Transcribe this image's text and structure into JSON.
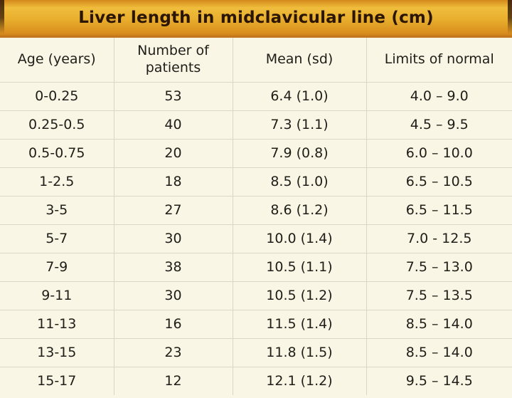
{
  "header": {
    "title": "Liver length in midclavicular line (cm)"
  },
  "chart_data": {
    "type": "table",
    "title": "Liver length in midclavicular line (cm)",
    "columns": [
      "Age (years)",
      "Number of\npatients",
      "Mean (sd)",
      "Limits of normal"
    ],
    "rows": [
      [
        "0-0.25",
        "53",
        "6.4 (1.0)",
        "4.0 – 9.0"
      ],
      [
        "0.25-0.5",
        "40",
        "7.3 (1.1)",
        "4.5 – 9.5"
      ],
      [
        "0.5-0.75",
        "20",
        "7.9 (0.8)",
        "6.0 – 10.0"
      ],
      [
        "1-2.5",
        "18",
        "8.5 (1.0)",
        "6.5 – 10.5"
      ],
      [
        "3-5",
        "27",
        "8.6 (1.2)",
        "6.5 – 11.5"
      ],
      [
        "5-7",
        "30",
        "10.0 (1.4)",
        "7.0 - 12.5"
      ],
      [
        "7-9",
        "38",
        "10.5 (1.1)",
        "7.5 – 13.0"
      ],
      [
        "9-11",
        "30",
        "10.5 (1.2)",
        "7.5 – 13.5"
      ],
      [
        "11-13",
        "16",
        "11.5 (1.4)",
        "8.5 – 14.0"
      ],
      [
        "13-15",
        "23",
        "11.8 (1.5)",
        "8.5 – 14.0"
      ],
      [
        "15-17",
        "12",
        "12.1 (1.2)",
        "9.5 – 14.5"
      ]
    ],
    "units": "cm",
    "layout": {
      "grid": true,
      "alternating_rows": false
    }
  },
  "colors": {
    "background": "#faf6e5",
    "divider": "#d9d6c7",
    "text": "#1f1d18",
    "title_text": "#2b1503",
    "header_gold_highlight": "#f0bd3c",
    "header_gold_shadow": "#d98f1e",
    "header_border": "#c4771c",
    "corner_edge": "#42250a"
  }
}
